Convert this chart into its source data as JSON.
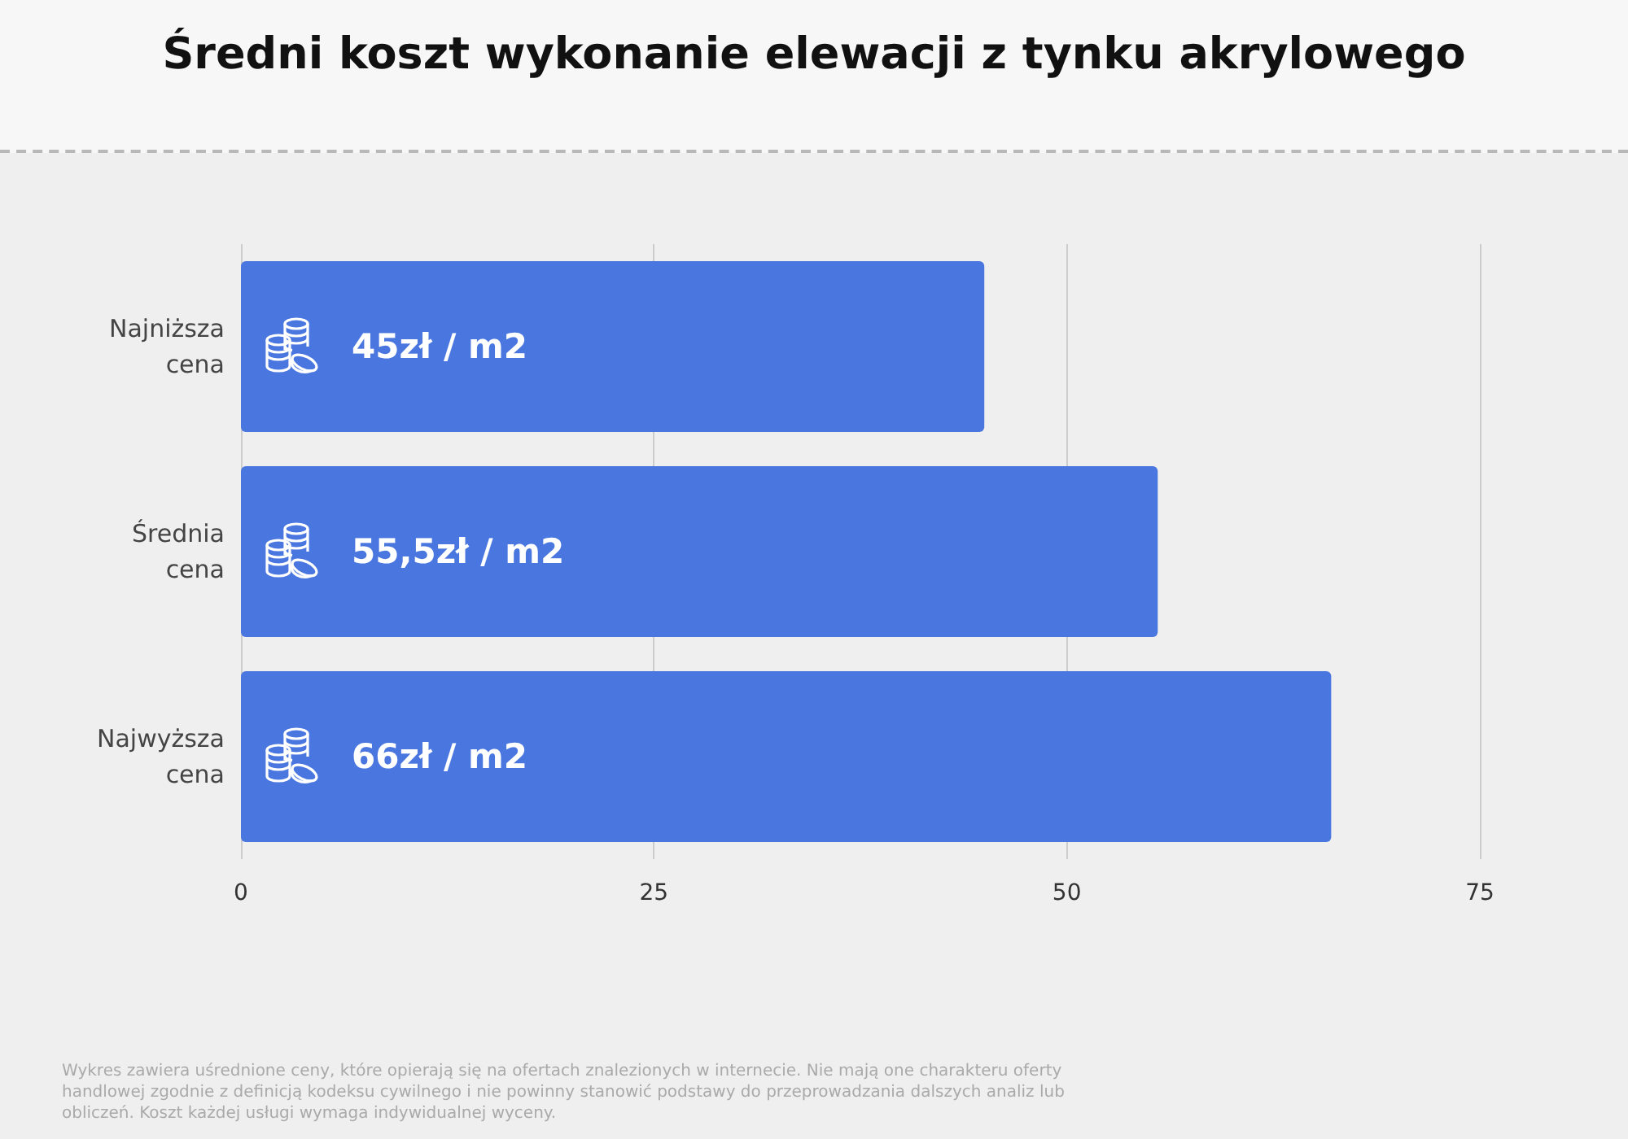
{
  "chart_data": {
    "type": "bar",
    "orientation": "horizontal",
    "title": "Średni koszt wykonanie elewacji z tynku akrylowego",
    "categories": [
      "Najniższa\ncena",
      "Średnia\ncena",
      "Najwyższa\ncena"
    ],
    "values": [
      45,
      55.5,
      66
    ],
    "value_labels": [
      "45zł / m2",
      "55,5zł / m2",
      "66zł / m2"
    ],
    "color": "#4a76e0",
    "xlim": [
      0,
      75
    ],
    "xticks": [
      0,
      25,
      50,
      75
    ],
    "grid": "x",
    "annotations": [
      "Wykres zawiera uśrednione ceny, które opierają się na ofertach znalezionych w internecie. Nie mają one charakteru oferty handlowej zgodnie z definicją kodeksu cywilnego i nie powinny stanowić podstawy do przeprowadzania dalszych analiz lub obliczeń. Koszt każdej usługi wymaga indywidualnej wyceny."
    ]
  }
}
